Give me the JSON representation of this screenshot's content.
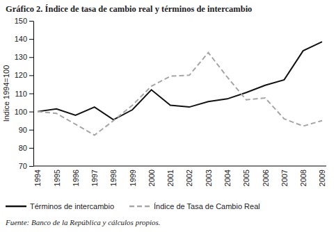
{
  "chart_data": {
    "type": "line",
    "title": "Gráfico 2. Índice de tasa de cambio real y términos de intercambio",
    "y_label": "Indice 1994=100",
    "source": "Fuente: Banco de la República y cálculos propios.",
    "categories": [
      "1994",
      "1995",
      "1996",
      "1997",
      "1998",
      "1999",
      "2000",
      "2001",
      "2002",
      "2003",
      "2004",
      "2005",
      "2006",
      "2007",
      "2008",
      "2009"
    ],
    "series": [
      {
        "name": "Términos de intercambio",
        "color": "#111111",
        "line_style": "solid",
        "values": [
          100,
          101.5,
          98,
          102.5,
          95.5,
          101,
          112,
          103.5,
          102.5,
          105.5,
          107,
          110.5,
          114.5,
          117.5,
          133.5,
          138.5
        ]
      },
      {
        "name": "Índice de Tasa de Cambio Real",
        "color": "#a6a6a6",
        "line_style": "dashed",
        "values": [
          100,
          99,
          93,
          87,
          95,
          103.5,
          114,
          119.5,
          120,
          132.5,
          119,
          106.5,
          107.5,
          96,
          92,
          95
        ]
      }
    ],
    "ylim": [
      70,
      150
    ],
    "yticks": [
      70,
      80,
      90,
      100,
      110,
      120,
      130,
      140,
      150
    ],
    "grid": false,
    "legend": "bottom"
  }
}
